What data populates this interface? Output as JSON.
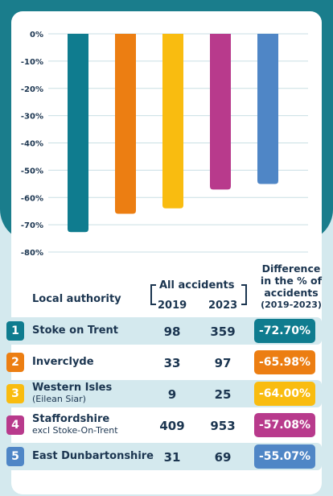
{
  "colors": {
    "teal": "#0f7c8f",
    "orange": "#ec7e12",
    "yellow": "#f9bc10",
    "magenta": "#b83a8c",
    "blue": "#4f86c6"
  },
  "chart_data": {
    "type": "bar",
    "categories": [
      "Stoke on Trent",
      "Inverclyde",
      "Western Isles",
      "Staffordshire",
      "East Dunbartonshire"
    ],
    "values": [
      -72.7,
      -65.98,
      -64.0,
      -57.08,
      -55.07
    ],
    "ylim": [
      -80,
      0
    ],
    "yticks": [
      "0%",
      "-10%",
      "-20%",
      "-30%",
      "-40%",
      "-50%",
      "-60%",
      "-70%",
      "-80%"
    ],
    "grid": true
  },
  "table": {
    "header_authority": "Local authority",
    "header_all": "All accidents",
    "header_2019": "2019",
    "header_2023": "2023",
    "header_diff_line1": "Difference",
    "header_diff_line2": "in the % of",
    "header_diff_line3": "accidents",
    "header_diff_line4": "(2019-2023)",
    "rows": [
      {
        "rank": "1",
        "name": "Stoke on Trent",
        "sub": "",
        "y2019": "98",
        "y2023": "359",
        "diff": "-72.70%",
        "color": "#0f7c8f"
      },
      {
        "rank": "2",
        "name": "Inverclyde",
        "sub": "",
        "y2019": "33",
        "y2023": "97",
        "diff": "-65.98%",
        "color": "#ec7e12"
      },
      {
        "rank": "3",
        "name": "Western Isles",
        "sub": "(Eilean Siar)",
        "y2019": "9",
        "y2023": "25",
        "diff": "-64.00%",
        "color": "#f9bc10"
      },
      {
        "rank": "4",
        "name": "Staffordshire",
        "sub": "excl Stoke-On-Trent",
        "y2019": "409",
        "y2023": "953",
        "diff": "-57.08%",
        "color": "#b83a8c"
      },
      {
        "rank": "5",
        "name": "East Dunbartonshire",
        "sub": "",
        "y2019": "31",
        "y2023": "69",
        "diff": "-55.07%",
        "color": "#4f86c6"
      }
    ]
  }
}
